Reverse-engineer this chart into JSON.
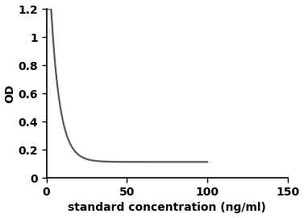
{
  "xlabel": "standard concentration (ng/ml)",
  "ylabel": "OD",
  "xlim": [
    0,
    150
  ],
  "ylim": [
    0,
    1.2
  ],
  "xticks": [
    0,
    50,
    100,
    150
  ],
  "yticks": [
    0,
    0.2,
    0.4,
    0.6,
    0.8,
    1.0,
    1.2
  ],
  "curve_color": "#595959",
  "curve_linewidth": 1.6,
  "background_color": "#ffffff",
  "plot_bg_color": "#ffffff",
  "xlabel_fontsize": 10,
  "ylabel_fontsize": 10,
  "tick_fontsize": 10,
  "curve_x_start": 0.0,
  "curve_x_end": 100.0,
  "curve_A": 0.115,
  "curve_B": 1.85,
  "curve_k": 0.18
}
